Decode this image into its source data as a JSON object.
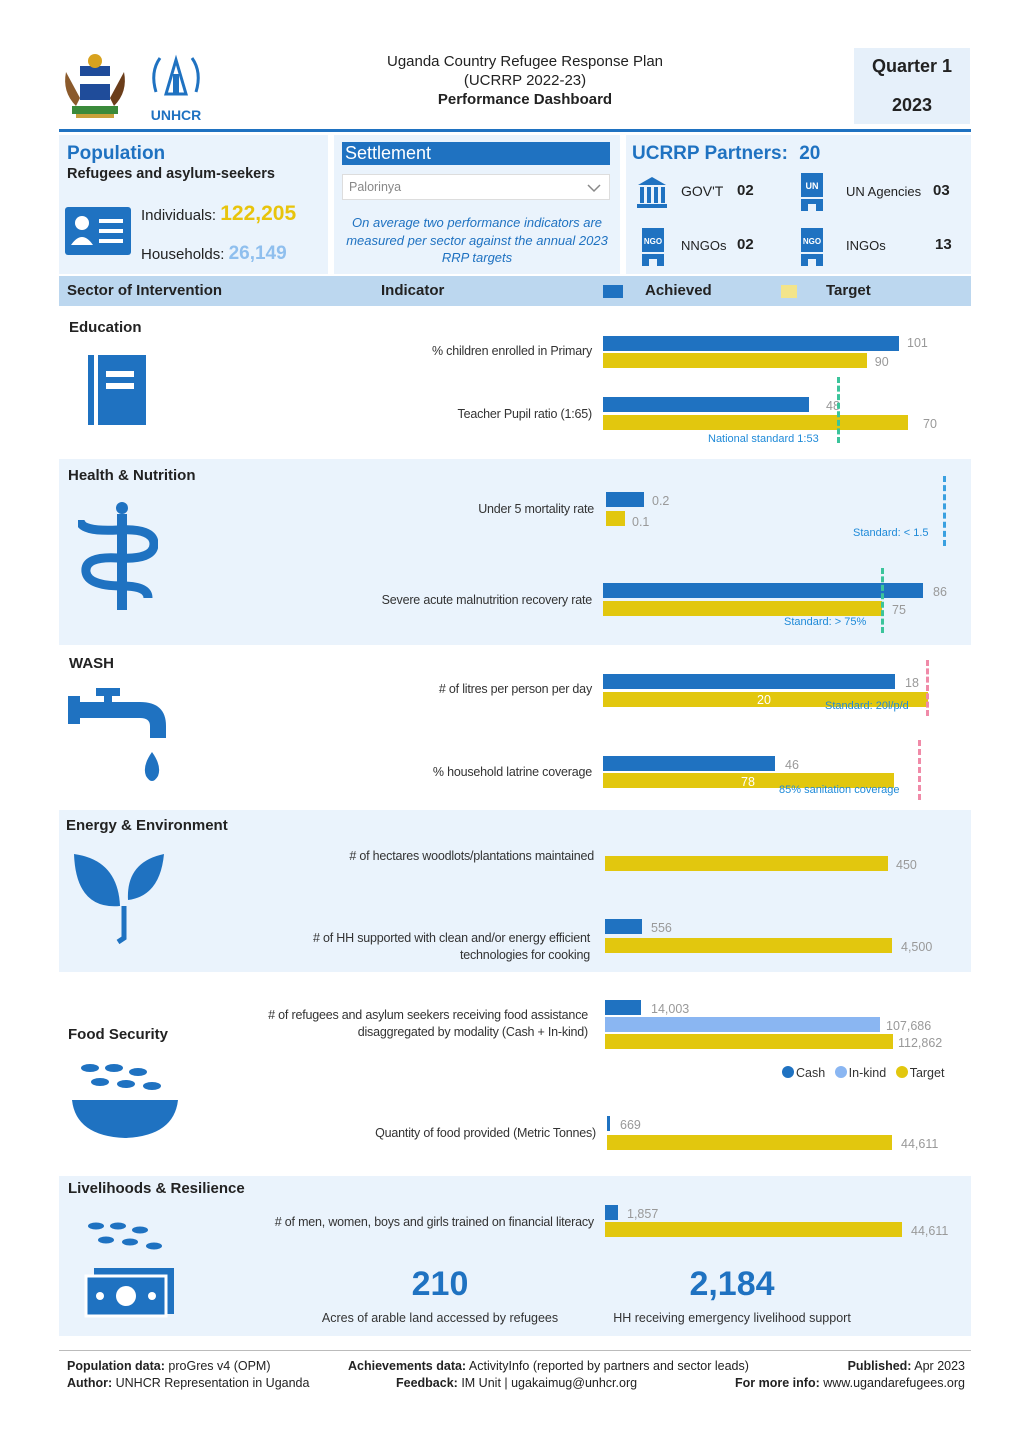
{
  "header": {
    "title_line1": "Uganda Country Refugee Response Plan",
    "title_line2": "(UCRRP 2022-23)",
    "title_line3": "Performance Dashboard",
    "quarter": "Quarter 1",
    "year": "2023",
    "logo_text": "UNHCR"
  },
  "population": {
    "title": "Population",
    "subtitle": "Refugees and asylum-seekers",
    "individuals_label": "Individuals:",
    "individuals_value": "122,205",
    "households_label": "Households:",
    "households_value": "26,149"
  },
  "settlement": {
    "title": "Settlement",
    "selected": "Palorinya",
    "note": "On average two performance indicators are measured per sector against the annual 2023 RRP targets"
  },
  "partners": {
    "title": "UCRRP Partners:",
    "count": "20",
    "items": [
      {
        "label": "GOV'T",
        "value": "02",
        "icon": "government-building-icon"
      },
      {
        "label": "UN Agencies",
        "value": "03",
        "icon": "un-agency-icon"
      },
      {
        "label": "NNGOs",
        "value": "02",
        "icon": "nngo-icon"
      },
      {
        "label": "INGOs",
        "value": "13",
        "icon": "ingo-icon"
      }
    ]
  },
  "columns": {
    "sector": "Sector of Intervention",
    "indicator": "Indicator",
    "achieved": "Achieved",
    "target": "Target"
  },
  "colors": {
    "achieved": "#1f72c1",
    "target": "#e2c70e",
    "inkind": "#8ab6f2",
    "standard_green": "#3bc49b",
    "standard_blue": "#3aa0e0",
    "standard_pink": "#f08aa8"
  },
  "chart_data": {
    "type": "bar",
    "series_names": [
      "Achieved",
      "Target"
    ],
    "sectors": [
      {
        "name": "Education",
        "icon": "book-icon",
        "indicators": [
          {
            "label": "% children enrolled in Primary",
            "achieved": 101,
            "target": 90,
            "achieved_label": "101",
            "target_label": "90"
          },
          {
            "label": "Teacher Pupil ratio (1:65)",
            "achieved": 48,
            "target": 70,
            "achieved_label": "48",
            "target_label": "70",
            "standard": 53,
            "standard_label": "National standard 1:53"
          }
        ]
      },
      {
        "name": "Health & Nutrition",
        "icon": "caduceus-icon",
        "indicators": [
          {
            "label": "Under 5 mortality rate",
            "achieved": 0.2,
            "target": 0.1,
            "achieved_label": "0.2",
            "target_label": "0.1",
            "standard": 1.5,
            "standard_label": "Standard: < 1.5"
          },
          {
            "label": "Severe acute malnutrition recovery rate",
            "achieved": 86,
            "target": 75,
            "achieved_label": "86",
            "target_label": "75",
            "standard": 75,
            "standard_label": "Standard: > 75%"
          }
        ]
      },
      {
        "name": "WASH",
        "icon": "water-tap-icon",
        "indicators": [
          {
            "label": "# of litres per person per day",
            "achieved": 18,
            "target": 20,
            "achieved_label": "18",
            "target_label": "20",
            "standard": 20,
            "standard_label": "Standard: 20l/p/d"
          },
          {
            "label": "% household latrine coverage",
            "achieved": 46,
            "target": 78,
            "achieved_label": "46",
            "target_label": "78",
            "standard": 85,
            "standard_label": "85% sanitation coverage"
          }
        ]
      },
      {
        "name": "Energy & Environment",
        "icon": "seedling-icon",
        "indicators": [
          {
            "label": "# of hectares woodlots/plantations maintained",
            "achieved": 0,
            "target": 450,
            "achieved_label": "",
            "target_label": "450"
          },
          {
            "label": "# of HH supported with clean and/or energy efficient technologies for cooking",
            "achieved": 556,
            "target": 4500,
            "achieved_label": "556",
            "target_label": "4,500"
          }
        ]
      },
      {
        "name": "Food Security",
        "icon": "grain-bowl-icon",
        "indicators": [
          {
            "label": "# of refugees and asylum seekers receiving food assistance disaggregated by modality (Cash + In-kind)",
            "cash": 14003,
            "inkind": 107686,
            "target": 112862,
            "cash_label": "14,003",
            "inkind_label": "107,686",
            "target_label": "112,862"
          },
          {
            "label": "Quantity of food provided (Metric Tonnes)",
            "achieved": 669,
            "target": 44611,
            "achieved_label": "669",
            "target_label": "44,611"
          }
        ],
        "legend": [
          "Cash",
          "In-kind",
          "Target"
        ]
      },
      {
        "name": "Livelihoods & Resilience",
        "icon": "cash-grain-icon",
        "indicators": [
          {
            "label": "# of men, women, boys and girls trained on financial literacy",
            "achieved": 1857,
            "target": 44611,
            "achieved_label": "1,857",
            "target_label": "44,611"
          }
        ],
        "highlights": [
          {
            "value": "210",
            "label": "Acres of arable land accessed by refugees"
          },
          {
            "value": "2,184",
            "label": "HH receiving emergency livelihood support"
          }
        ]
      }
    ]
  },
  "footer": {
    "pop_label": "Population data:",
    "pop_value": "proGres v4 (OPM)",
    "author_label": "Author:",
    "author_value": "UNHCR Representation in Uganda",
    "ach_label": "Achievements data:",
    "ach_value": "ActivityInfo (reported by partners and sector leads)",
    "feedback_label": "Feedback:",
    "feedback_value": "IM Unit | ugakaimug@unhcr.org",
    "pub_label": "Published:",
    "pub_value": "Apr 2023",
    "info_label": "For more info:",
    "info_value": "www.ugandarefugees.org"
  }
}
